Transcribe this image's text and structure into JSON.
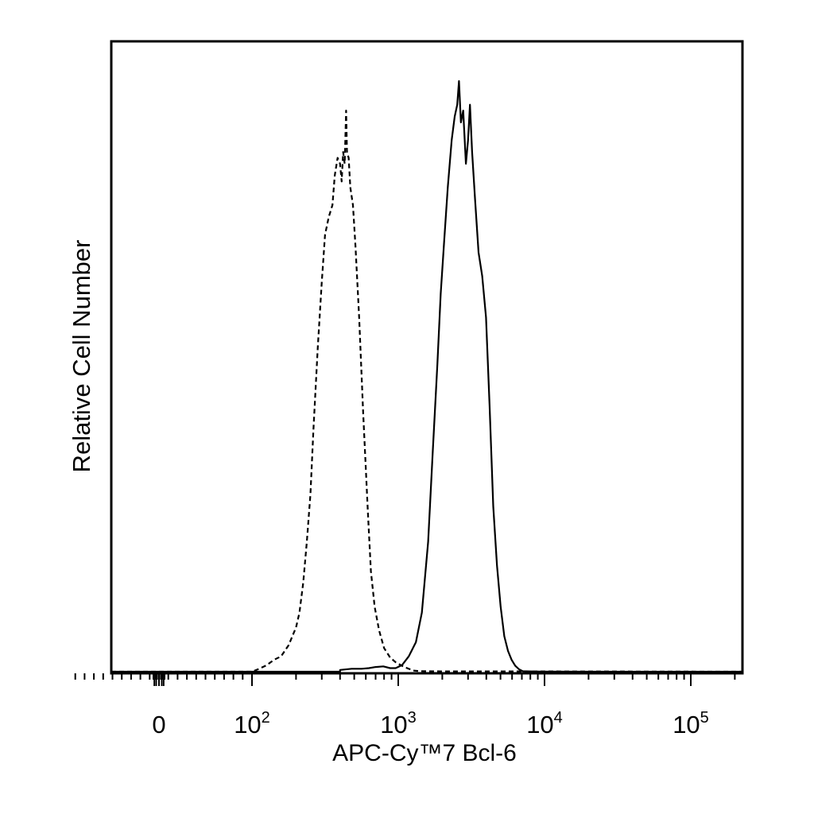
{
  "chart_data": {
    "type": "line",
    "title": "",
    "xlabel": "APC-Cy™7 Bcl-6",
    "ylabel": "Relative Cell Number",
    "xscale": "biexponential",
    "xlim": [
      -100,
      250000
    ],
    "ylim": [
      0,
      100
    ],
    "y_ticks_shown": false,
    "grid": false,
    "legend": "none",
    "x_tick_labels": [
      {
        "value": 0,
        "base": "0",
        "exp": ""
      },
      {
        "value": 100,
        "base": "10",
        "exp": "2"
      },
      {
        "value": 1000,
        "base": "10",
        "exp": "3"
      },
      {
        "value": 10000,
        "base": "10",
        "exp": "4"
      },
      {
        "value": 100000,
        "base": "10",
        "exp": "5"
      }
    ],
    "series": [
      {
        "style": "dashed",
        "color": "#000000",
        "points": [
          [
            100,
            0
          ],
          [
            112,
            0.5
          ],
          [
            126,
            1.1
          ],
          [
            141,
            2
          ],
          [
            158,
            2.6
          ],
          [
            178,
            4.5
          ],
          [
            200,
            7.5
          ],
          [
            211,
            10
          ],
          [
            224,
            15
          ],
          [
            237,
            22
          ],
          [
            251,
            30
          ],
          [
            263,
            41
          ],
          [
            282,
            55
          ],
          [
            300,
            66
          ],
          [
            316,
            74
          ],
          [
            335,
            77
          ],
          [
            355,
            79
          ],
          [
            368,
            84
          ],
          [
            385,
            87
          ],
          [
            400,
            86
          ],
          [
            410,
            83
          ],
          [
            420,
            88
          ],
          [
            430,
            86
          ],
          [
            440,
            95
          ],
          [
            446,
            88
          ],
          [
            458,
            87
          ],
          [
            470,
            82
          ],
          [
            490,
            79
          ],
          [
            510,
            72
          ],
          [
            540,
            60
          ],
          [
            575,
            44
          ],
          [
            620,
            27
          ],
          [
            650,
            17
          ],
          [
            690,
            11
          ],
          [
            740,
            7
          ],
          [
            800,
            4
          ],
          [
            880,
            2.4
          ],
          [
            960,
            1.6
          ],
          [
            1060,
            1
          ],
          [
            1150,
            0.6
          ],
          [
            1260,
            0.2
          ],
          [
            1400,
            0.1
          ],
          [
            1600,
            0.08
          ],
          [
            2000,
            0.05
          ],
          [
            2500,
            0.05
          ],
          [
            3200,
            0.05
          ],
          [
            4000,
            0.05
          ],
          [
            5000,
            0.05
          ],
          [
            6300,
            0.05
          ],
          [
            7600,
            0.05
          ]
        ]
      },
      {
        "style": "solid",
        "color": "#000000",
        "points": [
          [
            400,
            0.3
          ],
          [
            480,
            0.5
          ],
          [
            560,
            0.5
          ],
          [
            630,
            0.6
          ],
          [
            700,
            0.8
          ],
          [
            790,
            0.9
          ],
          [
            880,
            0.6
          ],
          [
            960,
            0.6
          ],
          [
            1060,
            1.1
          ],
          [
            1180,
            2.6
          ],
          [
            1320,
            5
          ],
          [
            1450,
            10
          ],
          [
            1600,
            22
          ],
          [
            1720,
            37
          ],
          [
            1850,
            52
          ],
          [
            1950,
            64
          ],
          [
            2060,
            73
          ],
          [
            2180,
            82
          ],
          [
            2320,
            90
          ],
          [
            2430,
            94
          ],
          [
            2530,
            96
          ],
          [
            2600,
            100
          ],
          [
            2680,
            93
          ],
          [
            2780,
            95
          ],
          [
            2900,
            86
          ],
          [
            3000,
            90
          ],
          [
            3090,
            96
          ],
          [
            3200,
            88
          ],
          [
            3350,
            80
          ],
          [
            3540,
            71
          ],
          [
            3750,
            67
          ],
          [
            3980,
            60
          ],
          [
            4210,
            45
          ],
          [
            4460,
            28
          ],
          [
            4730,
            18
          ],
          [
            5010,
            11
          ],
          [
            5310,
            6
          ],
          [
            5630,
            3.5
          ],
          [
            5960,
            2
          ],
          [
            6310,
            1
          ],
          [
            6700,
            0.4
          ],
          [
            7100,
            0.1
          ],
          [
            7940,
            0.05
          ],
          [
            9500,
            0.02
          ]
        ]
      }
    ]
  }
}
